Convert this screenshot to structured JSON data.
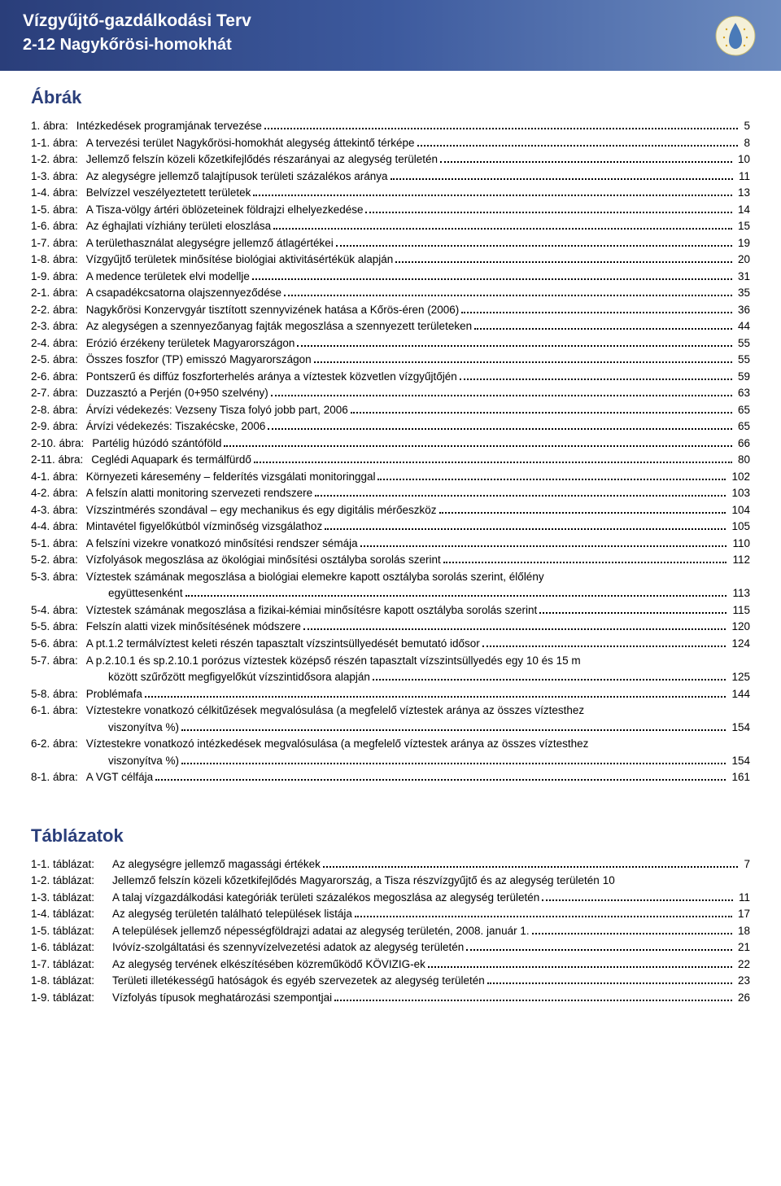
{
  "header": {
    "title": "Vízgyűjtő-gazdálkodási Terv",
    "subtitle": "2-12 Nagykőrösi-homokhát"
  },
  "colors": {
    "header_gradient_start": "#2a3e7a",
    "header_gradient_mid": "#3d5a9e",
    "header_gradient_end": "#6d8cc0",
    "heading_color": "#2a3e7a",
    "text_color": "#000000",
    "background": "#ffffff"
  },
  "sections": [
    {
      "title": "Ábrák",
      "label_class": "toc-label",
      "entries": [
        {
          "label": "1. ábra:",
          "text": "Intézkedések programjának tervezése",
          "page": "5"
        },
        {
          "label": "1-1. ábra:",
          "text": "A tervezési terület Nagykőrösi-homokhát alegység áttekintő térképe",
          "page": "8"
        },
        {
          "label": "1-2. ábra:",
          "text": "Jellemző felszín közeli kőzetkifejlődés részarányai az alegység területén",
          "page": "10"
        },
        {
          "label": "1-3. ábra:",
          "text": "Az alegységre jellemző talajtípusok területi százalékos aránya",
          "page": "11"
        },
        {
          "label": "1-4. ábra:",
          "text": "Belvízzel veszélyeztetett területek",
          "page": "13"
        },
        {
          "label": "1-5. ábra:",
          "text": "A Tisza-völgy ártéri öblözeteinek földrajzi elhelyezkedése",
          "page": "14"
        },
        {
          "label": "1-6. ábra:",
          "text": "Az éghajlati vízhiány területi eloszlása",
          "page": "15"
        },
        {
          "label": "1-7. ábra:",
          "text": "A területhasználat alegységre jellemző átlagértékei",
          "page": "19"
        },
        {
          "label": "1-8. ábra:",
          "text": "Vízgyűjtő területek minősítése biológiai aktivitásértékük alapján",
          "page": "20"
        },
        {
          "label": "1-9. ábra:",
          "text": "A medence területek elvi modellje",
          "page": "31"
        },
        {
          "label": "2-1. ábra:",
          "text": "A csapadékcsatorna olajszennyeződése",
          "page": "35"
        },
        {
          "label": "2-2. ábra:",
          "text": "Nagykőrösi Konzervgyár tisztított szennyvizének hatása a Kőrös-éren (2006)",
          "page": "36"
        },
        {
          "label": "2-3. ábra:",
          "text": "Az alegységen a szennyezőanyag fajták megoszlása a szennyezett területeken",
          "page": "44"
        },
        {
          "label": "2-4. ábra:",
          "text": "Erózió érzékeny területek Magyarországon",
          "page": "55"
        },
        {
          "label": "2-5. ábra:",
          "text": "Összes foszfor (TP) emisszó Magyarországon",
          "page": "55"
        },
        {
          "label": "2-6. ábra:",
          "text": "Pontszerű és diffúz foszforterhelés aránya a víztestek közvetlen vízgyűjtőjén",
          "page": "59"
        },
        {
          "label": "2-7. ábra:",
          "text": "Duzzasztó a Perjén (0+950 szelvény)",
          "page": "63"
        },
        {
          "label": "2-8. ábra:",
          "text": "Árvízi védekezés: Vezseny Tisza folyó jobb part, 2006",
          "page": "65"
        },
        {
          "label": "2-9. ábra:",
          "text": "Árvízi védekezés: Tiszakécske, 2006",
          "page": "65"
        },
        {
          "label": "2-10. ábra:",
          "text": "Partélig húzódó szántóföld",
          "page": "66"
        },
        {
          "label": "2-11. ábra:",
          "text": "Ceglédi Aquapark és termálfürdő",
          "page": "80"
        },
        {
          "label": "4-1. ábra:",
          "text": "Környezeti káresemény – felderítés vizsgálati monitoringgal",
          "page": "102"
        },
        {
          "label": "4-2. ábra:",
          "text": "A felszín alatti monitoring szervezeti rendszere",
          "page": "103"
        },
        {
          "label": "4-3. ábra:",
          "text": "Vízszintmérés szondával – egy mechanikus és egy digitális mérőeszköz",
          "page": "104"
        },
        {
          "label": "4-4. ábra:",
          "text": "Mintavétel figyelőkútból vízminőség vizsgálathoz",
          "page": "105"
        },
        {
          "label": "5-1. ábra:",
          "text": "A felszíni vizekre vonatkozó minősítési rendszer sémája",
          "page": "110"
        },
        {
          "label": "5-2. ábra:",
          "text": "Vízfolyások megoszlása az ökológiai minősítési osztályba sorolás szerint",
          "page": "112"
        },
        {
          "label": "5-3. ábra:",
          "text": "Víztestek számának megoszlása a biológiai elemekre kapott osztályba sorolás szerint, élőlény",
          "cont": "együttesenként",
          "page": "113"
        },
        {
          "label": "5-4. ábra:",
          "text": "Víztestek számának megoszlása a fizikai-kémiai minősítésre kapott osztályba sorolás szerint",
          "page": "115"
        },
        {
          "label": "5-5. ábra:",
          "text": "Felszín alatti vizek minősítésének módszere",
          "page": "120"
        },
        {
          "label": "5-6. ábra:",
          "text": "A pt.1.2 termálvíztest keleti részén tapasztalt vízszintsüllyedését bemutató idősor",
          "page": "124"
        },
        {
          "label": "5-7. ábra:",
          "text": "A p.2.10.1 és sp.2.10.1 porózus víztestek középső részén tapasztalt vízszintsüllyedés egy 10 és 15 m",
          "cont": "között szűrőzött megfigyelőkút vízszintidősora alapján",
          "page": "125"
        },
        {
          "label": "5-8. ábra:",
          "text": "Problémafa",
          "page": "144"
        },
        {
          "label": "6-1. ábra:",
          "text": "Víztestekre vonatkozó célkitűzések megvalósulása (a megfelelő víztestek aránya az összes víztesthez",
          "cont": "viszonyítva %)",
          "page": "154"
        },
        {
          "label": "6-2. ábra:",
          "text": "Víztestekre vonatkozó intézkedések megvalósulása (a megfelelő víztestek aránya az összes víztesthez",
          "cont": "viszonyítva %)",
          "page": "154"
        },
        {
          "label": "8-1. ábra:",
          "text": "A VGT célfája",
          "page": "161"
        }
      ]
    },
    {
      "title": "Táblázatok",
      "label_class": "toc-label-wide",
      "entries": [
        {
          "label": "1-1. táblázat:",
          "text": "Az alegységre jellemző magassági értékek",
          "page": "7"
        },
        {
          "label": "1-2. táblázat:",
          "text": "Jellemző felszín közeli kőzetkifejlődés Magyarország, a Tisza részvízgyűjtő és az alegység területén",
          "page": "10",
          "nodots": true
        },
        {
          "label": "1-3. táblázat:",
          "text": "A talaj vízgazdálkodási kategóriák területi százalékos megoszlása az alegység területén",
          "page": "11"
        },
        {
          "label": "1-4. táblázat:",
          "text": "Az alegység területén található települések listája",
          "page": "17"
        },
        {
          "label": "1-5. táblázat:",
          "text": " A települések jellemző népességföldrajzi adatai az alegység területén, 2008. január 1.",
          "page": "18"
        },
        {
          "label": "1-6. táblázat:",
          "text": "Ivóvíz-szolgáltatási és szennyvízelvezetési adatok az alegység területén",
          "page": "21"
        },
        {
          "label": "1-7. táblázat:",
          "text": "Az alegység tervének elkészítésében közreműködő KÖVIZIG-ek",
          "page": "22"
        },
        {
          "label": "1-8. táblázat:",
          "text": "Területi illetékességű hatóságok és egyéb szervezetek az alegység területén",
          "page": "23"
        },
        {
          "label": "1-9. táblázat:",
          "text": "Vízfolyás típusok meghatározási szempontjai",
          "page": "26"
        }
      ]
    }
  ]
}
